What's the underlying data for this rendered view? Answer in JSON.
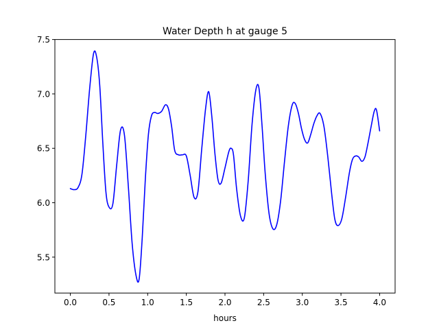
{
  "chart_data": {
    "type": "line",
    "title": "Water Depth h at gauge 5",
    "xlabel": "hours",
    "ylabel": "",
    "xlim": [
      -0.2,
      4.2
    ],
    "ylim": [
      5.17,
      7.5
    ],
    "xticks": [
      0.0,
      0.5,
      1.0,
      1.5,
      2.0,
      2.5,
      3.0,
      3.5,
      4.0
    ],
    "xtick_labels": [
      "0.0",
      "0.5",
      "1.0",
      "1.5",
      "2.0",
      "2.5",
      "3.0",
      "3.5",
      "4.0"
    ],
    "yticks": [
      5.5,
      6.0,
      6.5,
      7.0,
      7.5
    ],
    "ytick_labels": [
      "5.5",
      "6.0",
      "6.5",
      "7.0",
      "7.5"
    ],
    "grid": false,
    "legend": "none",
    "series": [
      {
        "color": "#0000ff",
        "x": [
          0.0,
          0.05,
          0.1,
          0.15,
          0.2,
          0.25,
          0.3,
          0.34,
          0.38,
          0.42,
          0.46,
          0.5,
          0.55,
          0.6,
          0.65,
          0.7,
          0.75,
          0.8,
          0.85,
          0.89,
          0.93,
          0.97,
          1.01,
          1.05,
          1.09,
          1.13,
          1.18,
          1.23,
          1.27,
          1.31,
          1.35,
          1.4,
          1.45,
          1.5,
          1.55,
          1.6,
          1.65,
          1.7,
          1.75,
          1.79,
          1.83,
          1.87,
          1.91,
          1.95,
          2.0,
          2.05,
          2.08,
          2.11,
          2.15,
          2.2,
          2.25,
          2.3,
          2.35,
          2.4,
          2.44,
          2.48,
          2.52,
          2.57,
          2.62,
          2.67,
          2.72,
          2.77,
          2.82,
          2.87,
          2.91,
          2.95,
          2.99,
          3.03,
          3.07,
          3.11,
          3.15,
          3.19,
          3.23,
          3.28,
          3.33,
          3.38,
          3.42,
          3.46,
          3.51,
          3.56,
          3.61,
          3.65,
          3.69,
          3.73,
          3.77,
          3.81,
          3.85,
          3.89,
          3.93,
          3.96,
          4.0
        ],
        "values": [
          6.13,
          6.12,
          6.14,
          6.26,
          6.62,
          7.05,
          7.37,
          7.34,
          7.08,
          6.55,
          6.1,
          5.96,
          5.99,
          6.35,
          6.67,
          6.62,
          6.15,
          5.62,
          5.33,
          5.3,
          5.68,
          6.22,
          6.63,
          6.8,
          6.83,
          6.82,
          6.84,
          6.9,
          6.86,
          6.7,
          6.48,
          6.44,
          6.44,
          6.43,
          6.25,
          6.05,
          6.1,
          6.5,
          6.87,
          7.02,
          6.79,
          6.45,
          6.21,
          6.18,
          6.32,
          6.47,
          6.5,
          6.44,
          6.13,
          5.88,
          5.86,
          6.2,
          6.72,
          7.04,
          7.05,
          6.7,
          6.27,
          5.9,
          5.76,
          5.8,
          6.02,
          6.38,
          6.71,
          6.9,
          6.91,
          6.82,
          6.68,
          6.58,
          6.55,
          6.63,
          6.73,
          6.8,
          6.82,
          6.7,
          6.42,
          6.08,
          5.85,
          5.79,
          5.85,
          6.05,
          6.28,
          6.4,
          6.43,
          6.42,
          6.38,
          6.42,
          6.55,
          6.7,
          6.84,
          6.85,
          6.66
        ]
      }
    ]
  }
}
